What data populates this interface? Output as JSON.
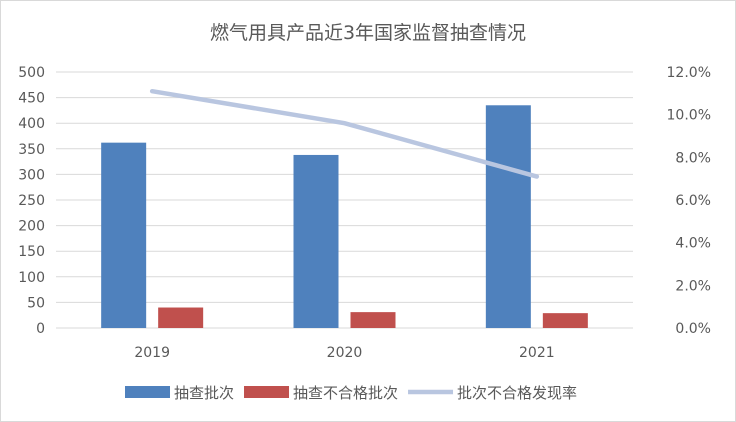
{
  "chart_data": {
    "type": "bar",
    "title": "燃气用具产品近3年国家监督抽查情况",
    "categories": [
      "2019",
      "2020",
      "2021"
    ],
    "series": [
      {
        "name": "抽查批次",
        "kind": "bar",
        "axis": "left",
        "color": "#4F81BD",
        "values": [
          362,
          338,
          435
        ]
      },
      {
        "name": "抽查不合格批次",
        "kind": "bar",
        "axis": "left",
        "color": "#C0504D",
        "values": [
          40,
          31,
          29
        ]
      },
      {
        "name": "批次不合格发现率",
        "kind": "line",
        "axis": "right",
        "color": "#B9C6E0",
        "values": [
          11.1,
          9.6,
          7.1
        ]
      }
    ],
    "ylim": [
      0,
      500
    ],
    "yticks": [
      "0",
      "50",
      "100",
      "150",
      "200",
      "250",
      "300",
      "350",
      "400",
      "450",
      "500"
    ],
    "y2lim": [
      0,
      12
    ],
    "y2ticks": [
      "0.0%",
      "2.0%",
      "4.0%",
      "6.0%",
      "8.0%",
      "10.0%",
      "12.0%"
    ],
    "legend": "bottom",
    "grid": true
  }
}
